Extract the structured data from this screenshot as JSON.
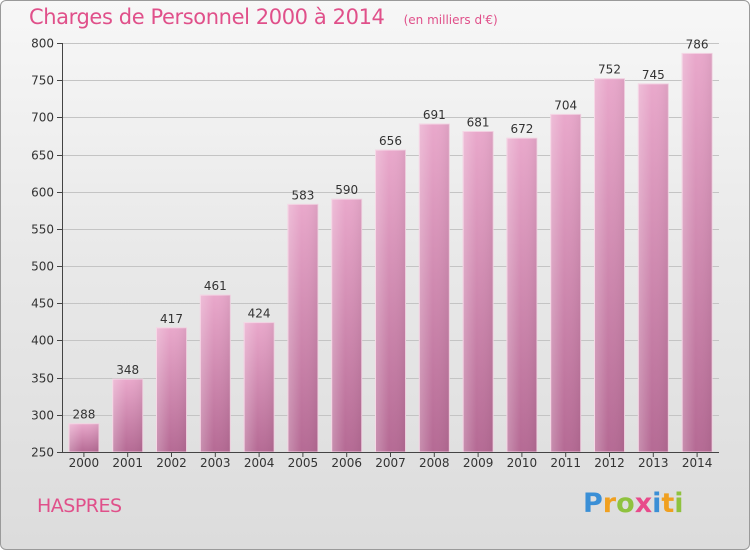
{
  "chart_data": {
    "type": "bar",
    "title": "Charges de Personnel 2000 à 2014",
    "subtitle": "(en milliers d'€)",
    "categories": [
      "2000",
      "2001",
      "2002",
      "2003",
      "2004",
      "2005",
      "2006",
      "2007",
      "2008",
      "2009",
      "2010",
      "2011",
      "2012",
      "2013",
      "2014"
    ],
    "values": [
      288,
      348,
      417,
      461,
      424,
      583,
      590,
      656,
      691,
      681,
      672,
      704,
      752,
      745,
      786
    ],
    "ylim": [
      250,
      800
    ],
    "yticks": [
      250,
      300,
      350,
      400,
      450,
      500,
      550,
      600,
      650,
      700,
      750,
      800
    ],
    "grid": true,
    "xlabel": "",
    "ylabel": "",
    "bar_color": "#d98bb5"
  },
  "place_name": "HASPRES",
  "logo": {
    "text": "Proxiti",
    "letters": [
      {
        "ch": "P",
        "color": "#3a8fd6"
      },
      {
        "ch": "r",
        "color": "#f0a020"
      },
      {
        "ch": "o",
        "color": "#8fc23e"
      },
      {
        "ch": "x",
        "color": "#e84a8a"
      },
      {
        "ch": "i",
        "color": "#3a8fd6"
      },
      {
        "ch": "t",
        "color": "#f0a020"
      },
      {
        "ch": "i",
        "color": "#8fc23e"
      }
    ]
  },
  "colors": {
    "accent": "#e0508a",
    "grid": "#c4c4c4",
    "axis": "#444444"
  }
}
